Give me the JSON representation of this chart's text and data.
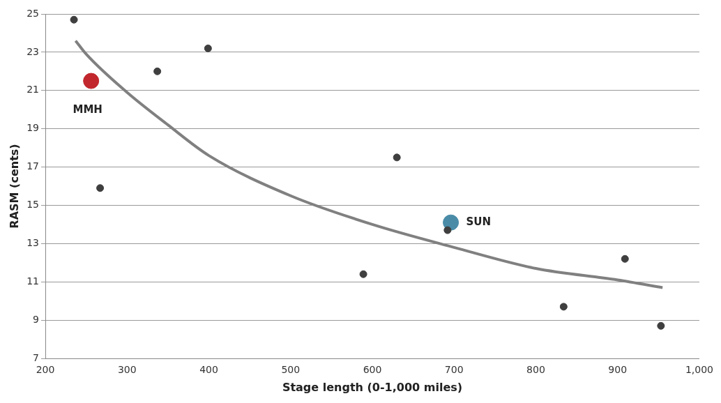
{
  "chart_data": {
    "type": "scatter",
    "xlabel": "Stage length (0-1,000 miles)",
    "ylabel": "RASM (cents)",
    "xlim": [
      200,
      1000
    ],
    "xticks": [
      200,
      300,
      400,
      500,
      600,
      700,
      800,
      900,
      {
        "value": 1000,
        "label": "1,000"
      }
    ],
    "ylim": [
      7,
      25
    ],
    "yticks": [
      7,
      9,
      11,
      13,
      15,
      17,
      19,
      21,
      23,
      25
    ],
    "grid": "y",
    "marker": "circle",
    "series": [
      {
        "color": "#3f3f3f",
        "x": [
          235,
          337,
          399,
          267,
          630,
          589,
          692,
          909,
          834,
          953
        ],
        "values": [
          24.7,
          22.0,
          23.2,
          15.9,
          17.5,
          11.4,
          13.7,
          12.2,
          9.7,
          8.7
        ]
      },
      {
        "name": "MMH",
        "color": "#c1272d",
        "x": [
          256
        ],
        "values": [
          21.5
        ]
      },
      {
        "name": "SUN",
        "color": "#4a8ca8",
        "x": [
          696
        ],
        "values": [
          14.1
        ]
      },
      {
        "type": "line",
        "marker": "none",
        "color": "#808080",
        "x": [
          237,
          250,
          300,
          350,
          400,
          500,
          600,
          700,
          800,
          900,
          955
        ],
        "values": [
          23.6,
          22.9,
          20.9,
          19.2,
          17.6,
          15.5,
          14.0,
          12.8,
          11.7,
          11.1,
          10.7
        ]
      }
    ]
  }
}
